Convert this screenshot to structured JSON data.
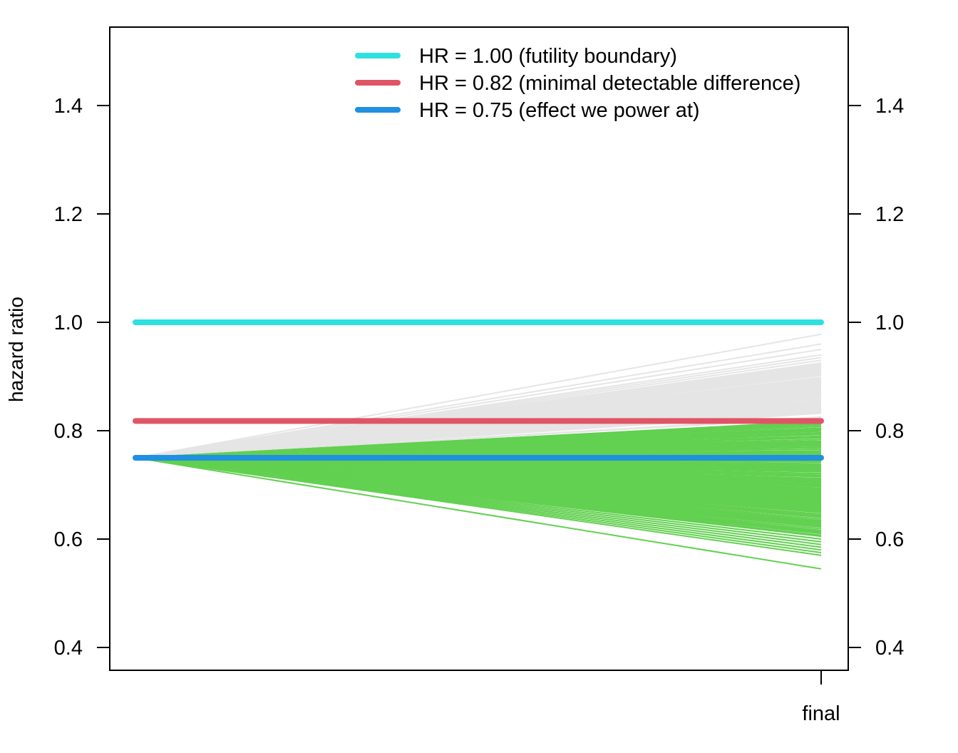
{
  "chart_data": {
    "type": "line",
    "ylabel": "hazard ratio",
    "x_categories": [
      "",
      "final"
    ],
    "x_tick_labels": [
      "final"
    ],
    "ylim": [
      0.36,
      1.55
    ],
    "y_ticks": [
      0.4,
      0.6,
      0.8,
      1.0,
      1.2,
      1.4
    ],
    "y_tick_labels": [
      "0.4",
      "0.6",
      "0.8",
      "1.0",
      "1.2",
      "1.4"
    ],
    "start_value": 0.75,
    "reference_lines": [
      {
        "name": "HR = 1.00 (futility boundary)",
        "value": 1.0,
        "color": "#2ee0e0"
      },
      {
        "name": "HR = 0.82 (minimal detectable difference)",
        "value": 0.818,
        "color": "#e05565"
      },
      {
        "name": "HR = 0.75 (effect we power at)",
        "value": 0.75,
        "color": "#2090e0"
      }
    ],
    "simulated_trajectories": {
      "color_success": "#62d050",
      "color_failure": "#e5e5e5",
      "threshold": 0.818,
      "success_outlier_endpoints": [
        0.545,
        0.57,
        0.575,
        0.58,
        0.585,
        0.59,
        0.595,
        0.6,
        0.605
      ],
      "failure_outlier_endpoints": [
        0.978,
        0.96,
        0.95,
        0.94,
        0.935,
        0.93,
        0.925,
        0.92,
        0.915,
        0.91
      ]
    },
    "legend_position": "top-right",
    "grid": false
  }
}
